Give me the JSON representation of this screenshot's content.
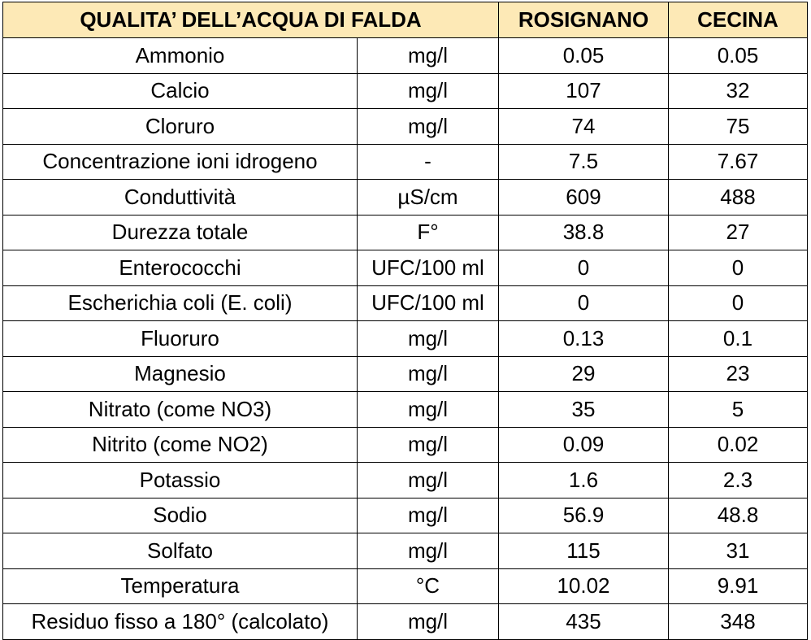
{
  "table": {
    "header": {
      "title": "QUALITA’ DELL’ACQUA DI FALDA",
      "col_rosignano": "ROSIGNANO",
      "col_cecina": "CECINA"
    },
    "rows": [
      {
        "parameter": "Ammonio",
        "unit": "mg/l",
        "rosignano": "0.05",
        "cecina": "0.05"
      },
      {
        "parameter": "Calcio",
        "unit": "mg/l",
        "rosignano": "107",
        "cecina": "32"
      },
      {
        "parameter": "Cloruro",
        "unit": "mg/l",
        "rosignano": "74",
        "cecina": "75"
      },
      {
        "parameter": "Concentrazione ioni idrogeno",
        "unit": "-",
        "rosignano": "7.5",
        "cecina": "7.67"
      },
      {
        "parameter": "Conduttività",
        "unit": "µS/cm",
        "rosignano": "609",
        "cecina": "488"
      },
      {
        "parameter": "Durezza totale",
        "unit": "F°",
        "rosignano": "38.8",
        "cecina": "27"
      },
      {
        "parameter": "Enterococchi",
        "unit": "UFC/100 ml",
        "rosignano": "0",
        "cecina": "0"
      },
      {
        "parameter": "Escherichia coli (E. coli)",
        "unit": "UFC/100 ml",
        "rosignano": "0",
        "cecina": "0"
      },
      {
        "parameter": "Fluoruro",
        "unit": "mg/l",
        "rosignano": "0.13",
        "cecina": "0.1"
      },
      {
        "parameter": "Magnesio",
        "unit": "mg/l",
        "rosignano": "29",
        "cecina": "23"
      },
      {
        "parameter": "Nitrato (come NO3)",
        "unit": "mg/l",
        "rosignano": "35",
        "cecina": "5"
      },
      {
        "parameter": "Nitrito (come NO2)",
        "unit": "mg/l",
        "rosignano": "0.09",
        "cecina": "0.02"
      },
      {
        "parameter": "Potassio",
        "unit": "mg/l",
        "rosignano": "1.6",
        "cecina": "2.3"
      },
      {
        "parameter": "Sodio",
        "unit": "mg/l",
        "rosignano": "56.9",
        "cecina": "48.8"
      },
      {
        "parameter": "Solfato",
        "unit": "mg/l",
        "rosignano": "115",
        "cecina": "31"
      },
      {
        "parameter": "Temperatura",
        "unit": "°C",
        "rosignano": "10.02",
        "cecina": "9.91"
      },
      {
        "parameter": "Residuo fisso a 180° (calcolato)",
        "unit": "mg/l",
        "rosignano": "435",
        "cecina": "348"
      }
    ]
  },
  "colors": {
    "header_background": "#fde9b6",
    "border": "#000000",
    "text": "#000000"
  }
}
